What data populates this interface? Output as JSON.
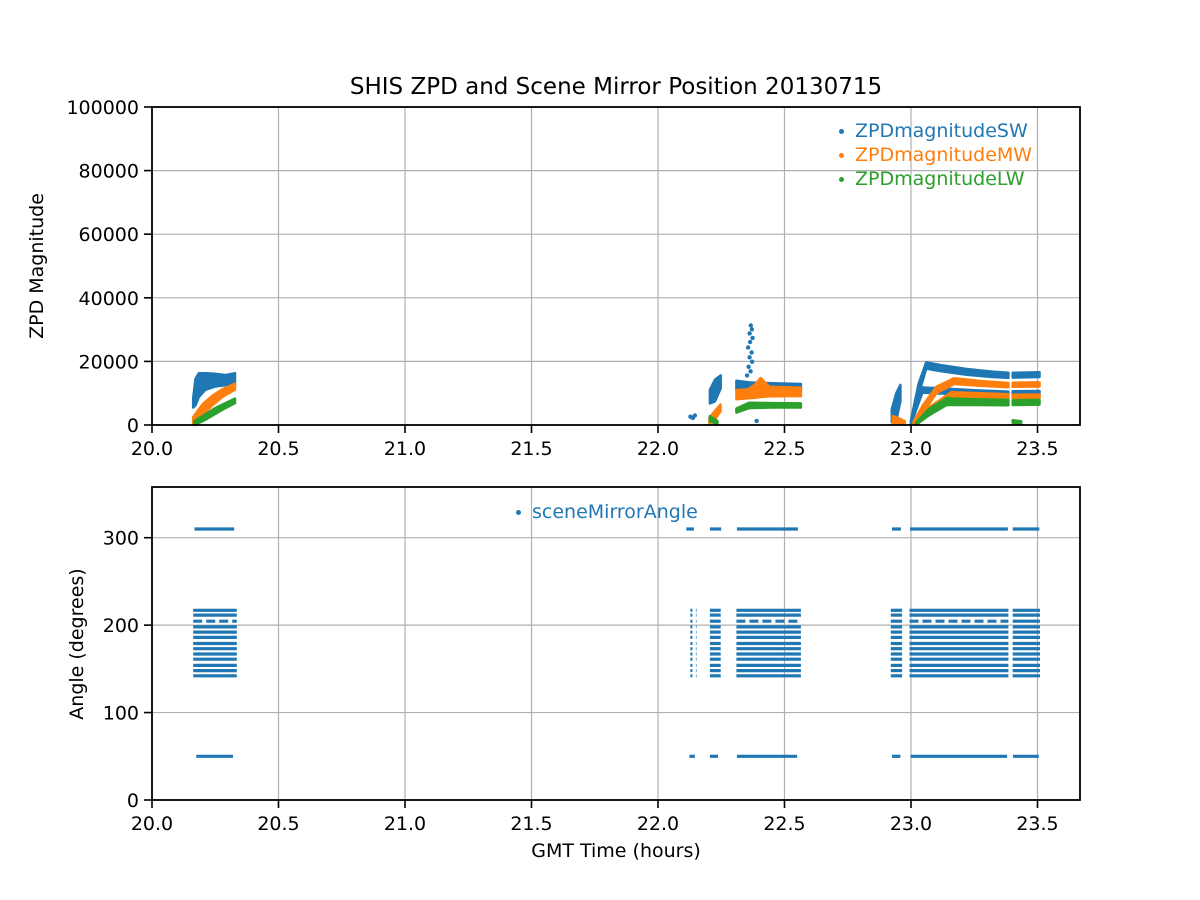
{
  "figure": {
    "title": "SHIS ZPD and Scene Mirror Position 20130715"
  },
  "chart_data": [
    {
      "name": "zpd-magnitude",
      "type": "scatter",
      "title": "SHIS ZPD and Scene Mirror Position 20130715",
      "ylabel": "ZPD Magnitude",
      "xlabel": "",
      "xlim": [
        20.0,
        23.668
      ],
      "ylim": [
        0,
        100000
      ],
      "xticks": [
        20.0,
        20.5,
        21.0,
        21.5,
        22.0,
        22.5,
        23.0,
        23.5
      ],
      "xtick_labels": [
        "20.0",
        "20.5",
        "21.0",
        "21.5",
        "22.0",
        "22.5",
        "23.0",
        "23.5"
      ],
      "yticks": [
        0,
        20000,
        40000,
        60000,
        80000,
        100000
      ],
      "ytick_labels": [
        "0",
        "20000",
        "40000",
        "60000",
        "80000",
        "100000"
      ],
      "grid": true,
      "grid_color": "#b0b0b0",
      "legend": {
        "loc": "upper right",
        "entries": [
          {
            "label": "ZPDmagnitudeSW",
            "color": "#1f77b4"
          },
          {
            "label": "ZPDmagnitudeMW",
            "color": "#ff7f0e"
          },
          {
            "label": "ZPDmagnitudeLW",
            "color": "#2ca02c"
          }
        ]
      },
      "series": [
        {
          "name": "ZPDmagnitudeSW",
          "color": "#1f77b4",
          "bands": [
            {
              "x": [
                20.163,
                20.172,
                20.185,
                20.21,
                20.25,
                20.29,
                20.328
              ],
              "top": [
                8500,
                14500,
                16300,
                16300,
                16100,
                15700,
                16300
              ],
              "bottom": [
                5500,
                6200,
                8800,
                11000,
                12100,
                12500,
                13100
              ]
            },
            {
              "x": [
                22.205,
                22.225,
                22.248
              ],
              "top": [
                11000,
                14200,
                15600
              ],
              "bottom": [
                6800,
                7400,
                11500
              ]
            },
            {
              "x": [
                22.31,
                22.36,
                22.45,
                22.565
              ],
              "top": [
                13900,
                13400,
                13100,
                12900
              ],
              "bottom": [
                10900,
                11000,
                11000,
                11100
              ]
            },
            {
              "x": [
                22.924,
                22.942,
                22.958
              ],
              "top": [
                5000,
                10000,
                12600
              ],
              "bottom": [
                900,
                1500,
                7500
              ]
            },
            {
              "x": [
                23.0,
                23.03,
                23.06,
                23.12,
                23.22,
                23.32,
                23.385
              ],
              "top": [
                1500,
                13000,
                19700,
                18800,
                17600,
                16800,
                16400
              ],
              "bottom": [
                400,
                9500,
                17700,
                16900,
                15800,
                15100,
                14800
              ]
            },
            {
              "x": [
                23.0,
                23.045,
                23.12,
                23.25,
                23.385
              ],
              "top": [
                1200,
                11800,
                11500,
                10900,
                10500
              ],
              "bottom": [
                300,
                10200,
                9900,
                9300,
                9100
              ]
            },
            {
              "x": [
                23.402,
                23.508
              ],
              "top": [
                16400,
                16600
              ],
              "bottom": [
                14900,
                15100
              ]
            },
            {
              "x": [
                23.402,
                23.508
              ],
              "top": [
                10600,
                10700
              ],
              "bottom": [
                9200,
                9300
              ]
            }
          ],
          "points": [
            [
              22.128,
              2600
            ],
            [
              22.138,
              2200
            ],
            [
              22.146,
              3000
            ],
            [
              22.39,
              1300
            ],
            [
              22.352,
              15600
            ],
            [
              22.366,
              16900
            ],
            [
              22.358,
              18300
            ],
            [
              22.372,
              19900
            ],
            [
              22.362,
              21300
            ],
            [
              22.37,
              22800
            ],
            [
              22.356,
              24400
            ],
            [
              22.364,
              26100
            ],
            [
              22.374,
              27400
            ],
            [
              22.362,
              28800
            ],
            [
              22.371,
              30100
            ],
            [
              22.367,
              31300
            ]
          ]
        },
        {
          "name": "ZPDmagnitudeMW",
          "color": "#ff7f0e",
          "bands": [
            {
              "x": [
                20.163,
                20.2,
                20.24,
                20.28,
                20.328
              ],
              "top": [
                2500,
                6500,
                9300,
                11300,
                13000
              ],
              "bottom": [
                300,
                3200,
                6300,
                8900,
                11100
              ]
            },
            {
              "x": [
                22.203,
                22.225,
                22.247
              ],
              "top": [
                2200,
                4400,
                6400
              ],
              "bottom": [
                400,
                1700,
                4300
              ]
            },
            {
              "x": [
                22.31,
                22.355,
                22.385,
                22.405,
                22.44,
                22.5,
                22.565
              ],
              "top": [
                11000,
                11200,
                12800,
                14800,
                12000,
                11900,
                11700
              ],
              "bottom": [
                8100,
                8400,
                8600,
                8800,
                9000,
                9100,
                9100
              ]
            },
            {
              "x": [
                22.928,
                22.955,
                22.975
              ],
              "top": [
                2800,
                2000,
                1200
              ],
              "bottom": [
                600,
                300,
                150
              ]
            },
            {
              "x": [
                23.01,
                23.05,
                23.1,
                23.17,
                23.28,
                23.385
              ],
              "top": [
                1000,
                6500,
                12000,
                14700,
                13800,
                13200
              ],
              "bottom": [
                200,
                4000,
                10000,
                12900,
                12300,
                11900
              ]
            },
            {
              "x": [
                23.02,
                23.08,
                23.16,
                23.3,
                23.385
              ],
              "top": [
                800,
                6000,
                10300,
                9900,
                9700
              ],
              "bottom": [
                100,
                4500,
                8800,
                8400,
                8200
              ]
            },
            {
              "x": [
                23.402,
                23.508
              ],
              "top": [
                13300,
                13400
              ],
              "bottom": [
                12000,
                12100
              ]
            },
            {
              "x": [
                23.402,
                23.508
              ],
              "top": [
                9500,
                9600
              ],
              "bottom": [
                8300,
                8400
              ]
            }
          ],
          "points": []
        },
        {
          "name": "ZPDmagnitudeLW",
          "color": "#2ca02c",
          "bands": [
            {
              "x": [
                20.168,
                20.21,
                20.25,
                20.29,
                20.328
              ],
              "top": [
                1300,
                3300,
                5300,
                6900,
                8300
              ],
              "bottom": [
                0,
                1600,
                3500,
                5300,
                6900
              ]
            },
            {
              "x": [
                22.205,
                22.235
              ],
              "top": [
                2800,
                1200
              ],
              "bottom": [
                1300,
                100
              ]
            },
            {
              "x": [
                22.31,
                22.36,
                22.45,
                22.565
              ],
              "top": [
                5200,
                7000,
                6900,
                6800
              ],
              "bottom": [
                3900,
                5300,
                5500,
                5500
              ]
            },
            {
              "x": [
                23.02,
                23.07,
                23.14,
                23.25,
                23.385
              ],
              "top": [
                800,
                5000,
                8400,
                8100,
                7900
              ],
              "bottom": [
                50,
                3000,
                6300,
                6300,
                6200
              ]
            },
            {
              "x": [
                23.402,
                23.508
              ],
              "top": [
                7800,
                7900
              ],
              "bottom": [
                6300,
                6400
              ]
            },
            {
              "x": [
                23.402,
                23.435
              ],
              "top": [
                1500,
                1200
              ],
              "bottom": [
                700,
                450
              ]
            }
          ],
          "points": []
        }
      ]
    },
    {
      "name": "scene-mirror-angle",
      "type": "scatter",
      "title": "",
      "ylabel": "Angle (degrees)",
      "xlabel": "GMT Time (hours)",
      "xlim": [
        20.0,
        23.668
      ],
      "ylim": [
        0,
        358
      ],
      "xticks": [
        20.0,
        20.5,
        21.0,
        21.5,
        22.0,
        22.5,
        23.0,
        23.5
      ],
      "xtick_labels": [
        "20.0",
        "20.5",
        "21.0",
        "21.5",
        "22.0",
        "22.5",
        "23.0",
        "23.5"
      ],
      "yticks": [
        0,
        100,
        200,
        300
      ],
      "ytick_labels": [
        "0",
        "100",
        "200",
        "300"
      ],
      "grid": true,
      "grid_color": "#b0b0b0",
      "legend": {
        "loc": "upper center",
        "entries": [
          {
            "label": "sceneMirrorAngle",
            "color": "#1f77b4"
          }
        ]
      },
      "series": [
        {
          "name": "sceneMirrorAngle",
          "color": "#1f77b4",
          "line_groups": [
            {
              "angles": [
                310
              ],
              "segments": [
                [
                  20.168,
                  20.325
                ],
                [
                  22.112,
                  22.142
                ],
                [
                  22.205,
                  22.25
                ],
                [
                  22.312,
                  22.553
                ],
                [
                  22.925,
                  22.96
                ],
                [
                  22.996,
                  23.383
                ],
                [
                  23.402,
                  23.507
                ]
              ]
            },
            {
              "angles": [
                142,
                148,
                154,
                161,
                167,
                173,
                179,
                186,
                192,
                198,
                204.5,
                211.5,
                217
              ],
              "broken_angle": 204.5,
              "segments": [
                [
                  20.163,
                  20.335
                ],
                [
                  22.205,
                  22.248
                ],
                [
                  22.31,
                  22.565
                ],
                [
                  22.92,
                  22.965
                ],
                [
                  22.994,
                  23.385
                ],
                [
                  23.402,
                  23.51
                ]
              ],
              "sparse_segments": [
                [
                  22.128,
                  22.152
                ]
              ]
            },
            {
              "angles": [
                50
              ],
              "segments": [
                [
                  20.175,
                  20.32
                ],
                [
                  22.124,
                  22.146
                ],
                [
                  22.205,
                  22.237
                ],
                [
                  22.312,
                  22.55
                ],
                [
                  22.925,
                  22.958
                ],
                [
                  22.998,
                  23.38
                ],
                [
                  23.403,
                  23.505
                ]
              ]
            }
          ]
        }
      ]
    }
  ]
}
